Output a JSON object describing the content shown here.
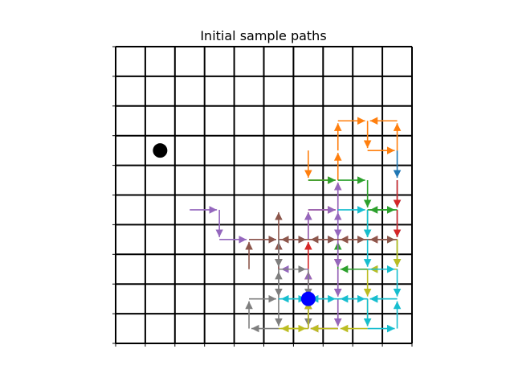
{
  "chart_data": {
    "type": "line",
    "title": "Initial sample paths",
    "xlabel": "",
    "ylabel": "",
    "xlim": [
      0,
      10
    ],
    "ylim": [
      0,
      10
    ],
    "grid": true,
    "x_ticks": [
      0,
      1,
      2,
      3,
      4,
      5,
      6,
      7,
      8,
      9,
      10
    ],
    "y_ticks": [
      0,
      1,
      2,
      3,
      4,
      5,
      6,
      7,
      8,
      9,
      10
    ],
    "markers": [
      {
        "label": "black-dot",
        "x": 1.5,
        "y": 6.5,
        "color": "#000000"
      },
      {
        "label": "blue-dot",
        "x": 6.5,
        "y": 1.5,
        "color": "#0000ff"
      }
    ],
    "series": [
      {
        "color": "#1f77b4",
        "points": [
          [
            9.5,
            6.5
          ],
          [
            9.5,
            5.5
          ],
          [
            9.5,
            4.5
          ],
          [
            9.5,
            3.5
          ]
        ]
      },
      {
        "color": "#ff7f0e",
        "points": [
          [
            6.5,
            6.5
          ],
          [
            6.5,
            5.5
          ],
          [
            7.5,
            5.5
          ],
          [
            7.5,
            6.5
          ],
          [
            7.5,
            7.5
          ],
          [
            8.5,
            7.5
          ],
          [
            8.5,
            6.5
          ],
          [
            9.5,
            6.5
          ],
          [
            9.5,
            7.5
          ],
          [
            8.5,
            7.5
          ]
        ]
      },
      {
        "color": "#2ca02c",
        "points": [
          [
            6.5,
            5.5
          ],
          [
            7.5,
            5.5
          ],
          [
            8.5,
            5.5
          ],
          [
            8.5,
            4.5
          ],
          [
            9.5,
            4.5
          ],
          [
            8.5,
            4.5
          ],
          [
            8.5,
            3.5
          ],
          [
            9.5,
            3.5
          ],
          [
            9.5,
            2.5
          ],
          [
            8.5,
            2.5
          ],
          [
            7.5,
            2.5
          ],
          [
            7.5,
            3.5
          ]
        ]
      },
      {
        "color": "#d62728",
        "points": [
          [
            9.5,
            5.5
          ],
          [
            9.5,
            4.5
          ],
          [
            9.5,
            3.5
          ],
          [
            8.5,
            3.5
          ],
          [
            7.5,
            3.5
          ],
          [
            7.5,
            2.5
          ],
          [
            7.5,
            1.5
          ],
          [
            7.5,
            0.5
          ],
          [
            6.5,
            0.5
          ],
          [
            6.5,
            1.5
          ],
          [
            6.5,
            2.5
          ],
          [
            6.5,
            3.5
          ],
          [
            6.5,
            4.5
          ],
          [
            7.5,
            4.5
          ],
          [
            7.5,
            5.5
          ]
        ]
      },
      {
        "color": "#9467bd",
        "points": [
          [
            2.5,
            4.5
          ],
          [
            3.5,
            4.5
          ],
          [
            3.5,
            3.5
          ],
          [
            4.5,
            3.5
          ],
          [
            5.5,
            3.5
          ],
          [
            6.5,
            3.5
          ],
          [
            6.5,
            4.5
          ],
          [
            7.5,
            4.5
          ],
          [
            7.5,
            3.5
          ],
          [
            7.5,
            2.5
          ],
          [
            7.5,
            1.5
          ],
          [
            7.5,
            0.5
          ],
          [
            6.5,
            0.5
          ],
          [
            6.5,
            1.5
          ],
          [
            6.5,
            2.5
          ],
          [
            5.5,
            2.5
          ],
          [
            5.5,
            3.5
          ],
          [
            6.5,
            3.5
          ],
          [
            7.5,
            3.5
          ],
          [
            7.5,
            4.5
          ],
          [
            7.5,
            5.5
          ]
        ]
      },
      {
        "color": "#8c564b",
        "points": [
          [
            4.5,
            2.5
          ],
          [
            4.5,
            3.5
          ],
          [
            5.5,
            3.5
          ],
          [
            6.5,
            3.5
          ],
          [
            7.5,
            3.5
          ],
          [
            8.5,
            3.5
          ],
          [
            9.5,
            3.5
          ],
          [
            8.5,
            3.5
          ],
          [
            7.5,
            3.5
          ],
          [
            6.5,
            3.5
          ],
          [
            5.5,
            3.5
          ],
          [
            5.5,
            2.5
          ],
          [
            5.5,
            3.5
          ],
          [
            5.5,
            4.5
          ]
        ]
      },
      {
        "color": "#e377c2",
        "points": []
      },
      {
        "color": "#7f7f7f",
        "points": [
          [
            5.5,
            3.5
          ],
          [
            5.5,
            2.5
          ],
          [
            5.5,
            1.5
          ],
          [
            5.5,
            0.5
          ],
          [
            4.5,
            0.5
          ],
          [
            4.5,
            1.5
          ],
          [
            5.5,
            1.5
          ],
          [
            5.5,
            2.5
          ],
          [
            6.5,
            2.5
          ],
          [
            6.5,
            1.5
          ],
          [
            6.5,
            0.5
          ]
        ]
      },
      {
        "color": "#bcbd22",
        "points": [
          [
            9.5,
            3.5
          ],
          [
            9.5,
            2.5
          ],
          [
            8.5,
            2.5
          ],
          [
            8.5,
            1.5
          ],
          [
            8.5,
            0.5
          ],
          [
            7.5,
            0.5
          ],
          [
            6.5,
            0.5
          ],
          [
            5.5,
            0.5
          ],
          [
            6.5,
            0.5
          ],
          [
            6.5,
            1.5
          ]
        ]
      },
      {
        "color": "#17becf",
        "points": [
          [
            7.5,
            4.5
          ],
          [
            8.5,
            4.5
          ],
          [
            8.5,
            3.5
          ],
          [
            8.5,
            2.5
          ],
          [
            9.5,
            2.5
          ],
          [
            9.5,
            1.5
          ],
          [
            8.5,
            1.5
          ],
          [
            7.5,
            1.5
          ],
          [
            6.5,
            1.5
          ],
          [
            5.5,
            1.5
          ],
          [
            6.5,
            1.5
          ],
          [
            7.5,
            1.5
          ],
          [
            8.5,
            1.5
          ],
          [
            8.5,
            0.5
          ],
          [
            9.5,
            0.5
          ],
          [
            9.5,
            1.5
          ],
          [
            8.5,
            1.5
          ]
        ]
      }
    ]
  }
}
